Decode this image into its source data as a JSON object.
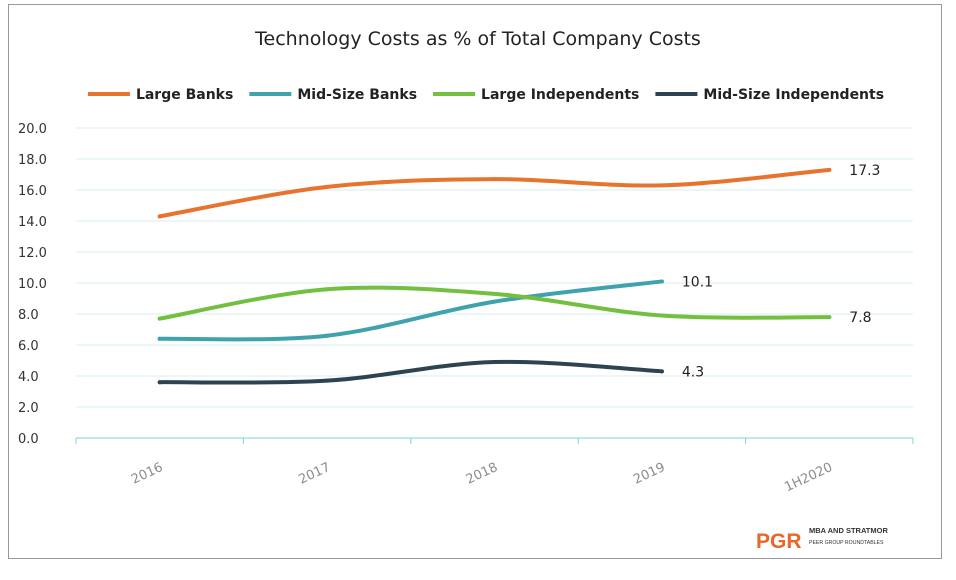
{
  "chart_data": {
    "type": "line",
    "title": "Technology Costs as % of Total Company Costs",
    "categories": [
      "2016",
      "2017",
      "2018",
      "2019",
      "1H2020"
    ],
    "ylim": [
      0,
      20
    ],
    "yticks": [
      "0.0",
      "2.0",
      "4.0",
      "6.0",
      "8.0",
      "10.0",
      "12.0",
      "14.0",
      "16.0",
      "18.0",
      "20.0"
    ],
    "grid": true,
    "legend_position": "top",
    "series": [
      {
        "name": "Large Banks",
        "color": "#e8732f",
        "values": [
          14.3,
          16.2,
          16.7,
          16.3,
          17.3
        ],
        "end_label": "17.3"
      },
      {
        "name": "Mid-Size Banks",
        "color": "#3fa2ad",
        "values": [
          6.4,
          6.6,
          8.8,
          10.1,
          null
        ],
        "end_label": "10.1"
      },
      {
        "name": "Large Independents",
        "color": "#73bf3f",
        "values": [
          7.7,
          9.6,
          9.3,
          7.9,
          7.8
        ],
        "end_label": "7.8"
      },
      {
        "name": "Mid-Size Independents",
        "color": "#2e4352",
        "values": [
          3.6,
          3.7,
          4.9,
          4.3,
          null
        ],
        "end_label": "4.3"
      }
    ]
  },
  "logo": {
    "mark": "PGR",
    "line1": "MBA AND STRATMOR",
    "line2": "PEER GROUP ROUNDTABLES",
    "color": "#e8672a"
  }
}
